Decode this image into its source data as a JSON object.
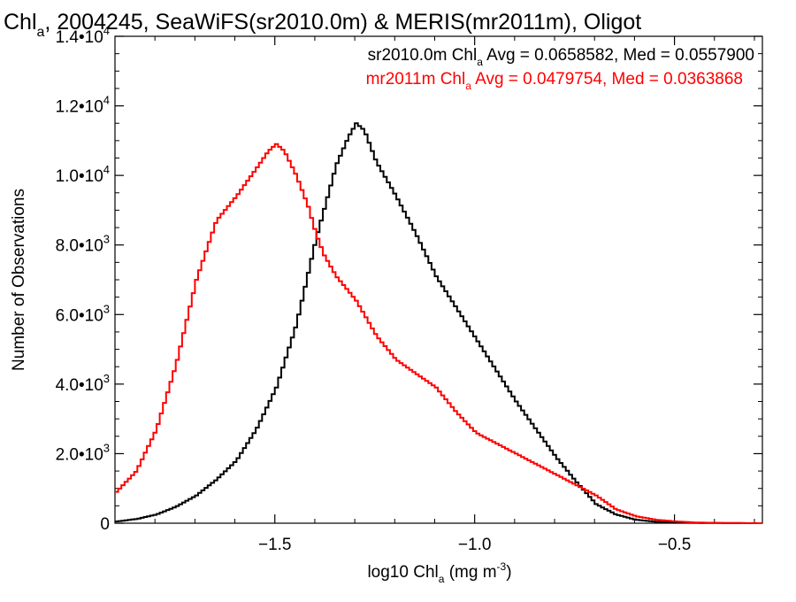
{
  "chart_data": {
    "type": "line",
    "title": {
      "prefix": "Chl",
      "prefix_sub": "a",
      "rest": ", 2004245, SeaWiFS(sr2010.0m) & MERIS(mr2011m), Oligot"
    },
    "xlabel": {
      "prefix": "log10 Chl",
      "sub": "a",
      "units": " (mg m",
      "units_sup": "-3",
      "close": ")"
    },
    "ylabel": "Number of Observations",
    "xlim": [
      -1.9,
      -0.28
    ],
    "ylim": [
      0,
      14000
    ],
    "grid": false,
    "x_ticks": [
      {
        "value": -1.5,
        "label": "−1.5"
      },
      {
        "value": -1.0,
        "label": "−1.0"
      },
      {
        "value": -0.5,
        "label": "−0.5"
      }
    ],
    "y_ticks": [
      {
        "value": 0,
        "mant": "0",
        "exp": ""
      },
      {
        "value": 2000,
        "mant": "2.0•10",
        "exp": "3"
      },
      {
        "value": 4000,
        "mant": "4.0•10",
        "exp": "3"
      },
      {
        "value": 6000,
        "mant": "6.0•10",
        "exp": "3"
      },
      {
        "value": 8000,
        "mant": "8.0•10",
        "exp": "3"
      },
      {
        "value": 10000,
        "mant": "1.0•10",
        "exp": "4"
      },
      {
        "value": 12000,
        "mant": "1.2•10",
        "exp": "4"
      },
      {
        "value": 14000,
        "mant": "1.4•10",
        "exp": "4"
      }
    ],
    "legend": {
      "placement": "top-right",
      "entries": [
        {
          "prefix": "sr2010.0m Chl",
          "sub": "a",
          "rest": " Avg = 0.0658582, Med = 0.0557900",
          "color": "#000000"
        },
        {
          "prefix": "mr2011m Chl",
          "sub": "a",
          "rest": " Avg = 0.0479754, Med = 0.0363868",
          "color": "#ff0000"
        }
      ]
    },
    "series": [
      {
        "color": "#000000",
        "x": [
          -1.9,
          -1.85,
          -1.8,
          -1.75,
          -1.7,
          -1.65,
          -1.6,
          -1.55,
          -1.5,
          -1.45,
          -1.4,
          -1.35,
          -1.32,
          -1.3,
          -1.28,
          -1.25,
          -1.2,
          -1.15,
          -1.1,
          -1.05,
          -1.0,
          -0.95,
          -0.9,
          -0.85,
          -0.8,
          -0.75,
          -0.7,
          -0.65,
          -0.6,
          -0.55,
          -0.5,
          -0.45,
          -0.4,
          -0.35,
          -0.28
        ],
        "values": [
          50,
          120,
          250,
          480,
          800,
          1250,
          1800,
          2700,
          3900,
          5700,
          8200,
          10300,
          11100,
          11500,
          11300,
          10400,
          9400,
          8300,
          7100,
          6200,
          5300,
          4400,
          3500,
          2700,
          1900,
          1200,
          550,
          250,
          100,
          40,
          20,
          10,
          5,
          2,
          0
        ]
      },
      {
        "color": "#ff0000",
        "x": [
          -1.9,
          -1.85,
          -1.8,
          -1.75,
          -1.7,
          -1.65,
          -1.6,
          -1.55,
          -1.52,
          -1.5,
          -1.48,
          -1.45,
          -1.42,
          -1.4,
          -1.38,
          -1.35,
          -1.3,
          -1.25,
          -1.2,
          -1.15,
          -1.1,
          -1.05,
          -1.0,
          -0.95,
          -0.9,
          -0.85,
          -0.8,
          -0.75,
          -0.7,
          -0.65,
          -0.6,
          -0.55,
          -0.5,
          -0.45,
          -0.4,
          -0.35,
          -0.28
        ],
        "values": [
          900,
          1500,
          2700,
          4600,
          7000,
          8700,
          9400,
          10200,
          10700,
          10900,
          10700,
          10000,
          9100,
          8300,
          7700,
          7100,
          6400,
          5400,
          4700,
          4300,
          3900,
          3200,
          2600,
          2300,
          2000,
          1700,
          1400,
          1100,
          800,
          400,
          200,
          100,
          50,
          20,
          10,
          5,
          0
        ]
      }
    ]
  }
}
